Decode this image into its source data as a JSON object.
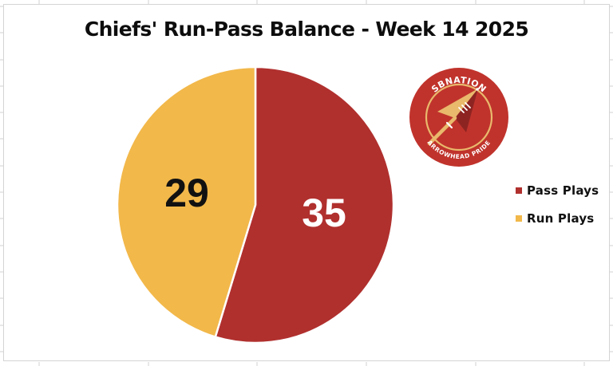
{
  "chart_data": {
    "type": "pie",
    "title": "Chiefs' Run-Pass Balance - Week 14 2025",
    "categories": [
      "Pass Plays",
      "Run Plays"
    ],
    "values": [
      35,
      29
    ],
    "colors": [
      "#B0302E",
      "#F2B84A"
    ],
    "data_labels": [
      "35",
      "29"
    ],
    "data_label_colors": [
      "#ffffff",
      "#111111"
    ],
    "start_angle_deg": 0,
    "direction": "clockwise",
    "legend": {
      "position": "right",
      "entries": [
        {
          "label": "Pass Plays",
          "color": "#B0302E"
        },
        {
          "label": "Run Plays",
          "color": "#F2B84A"
        }
      ]
    },
    "grid": false
  },
  "logo": {
    "top_text": "SBNATION",
    "bottom_text": "ARROWHEAD PRIDE",
    "icon": "arrowhead-icon",
    "bg_color": "#C0332C",
    "accent_color": "#E9B96C"
  }
}
